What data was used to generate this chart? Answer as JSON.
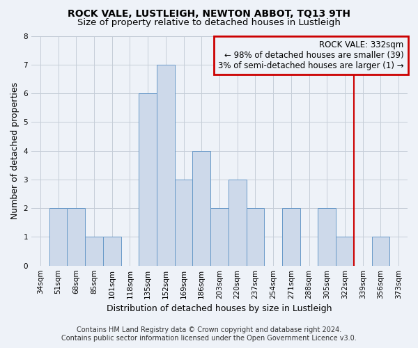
{
  "title": "ROCK VALE, LUSTLEIGH, NEWTON ABBOT, TQ13 9TH",
  "subtitle": "Size of property relative to detached houses in Lustleigh",
  "xlabel": "Distribution of detached houses by size in Lustleigh",
  "ylabel": "Number of detached properties",
  "footer_line1": "Contains HM Land Registry data © Crown copyright and database right 2024.",
  "footer_line2": "Contains public sector information licensed under the Open Government Licence v3.0.",
  "categories": [
    "34sqm",
    "51sqm",
    "68sqm",
    "85sqm",
    "101sqm",
    "118sqm",
    "135sqm",
    "152sqm",
    "169sqm",
    "186sqm",
    "203sqm",
    "220sqm",
    "237sqm",
    "254sqm",
    "271sqm",
    "288sqm",
    "305sqm",
    "322sqm",
    "339sqm",
    "356sqm",
    "373sqm"
  ],
  "values": [
    0,
    2,
    2,
    1,
    1,
    0,
    6,
    7,
    3,
    4,
    2,
    3,
    2,
    0,
    2,
    0,
    2,
    1,
    0,
    1,
    0
  ],
  "bar_color": "#cdd9ea",
  "bar_edge_color": "#6899c8",
  "grid_color": "#c5cdd8",
  "background_color": "#eef2f8",
  "annotation_text": "ROCK VALE: 332sqm\n← 98% of detached houses are smaller (39)\n3% of semi-detached houses are larger (1) →",
  "annotation_box_facecolor": "#eef2f8",
  "annotation_box_edgecolor": "#cc0000",
  "vline_x_index": 17.5,
  "vline_color": "#cc0000",
  "ylim": [
    0,
    8
  ],
  "yticks": [
    0,
    1,
    2,
    3,
    4,
    5,
    6,
    7,
    8
  ],
  "title_fontsize": 10,
  "subtitle_fontsize": 9.5,
  "axis_label_fontsize": 9,
  "tick_fontsize": 7.5,
  "footer_fontsize": 7,
  "annotation_fontsize": 8.5
}
